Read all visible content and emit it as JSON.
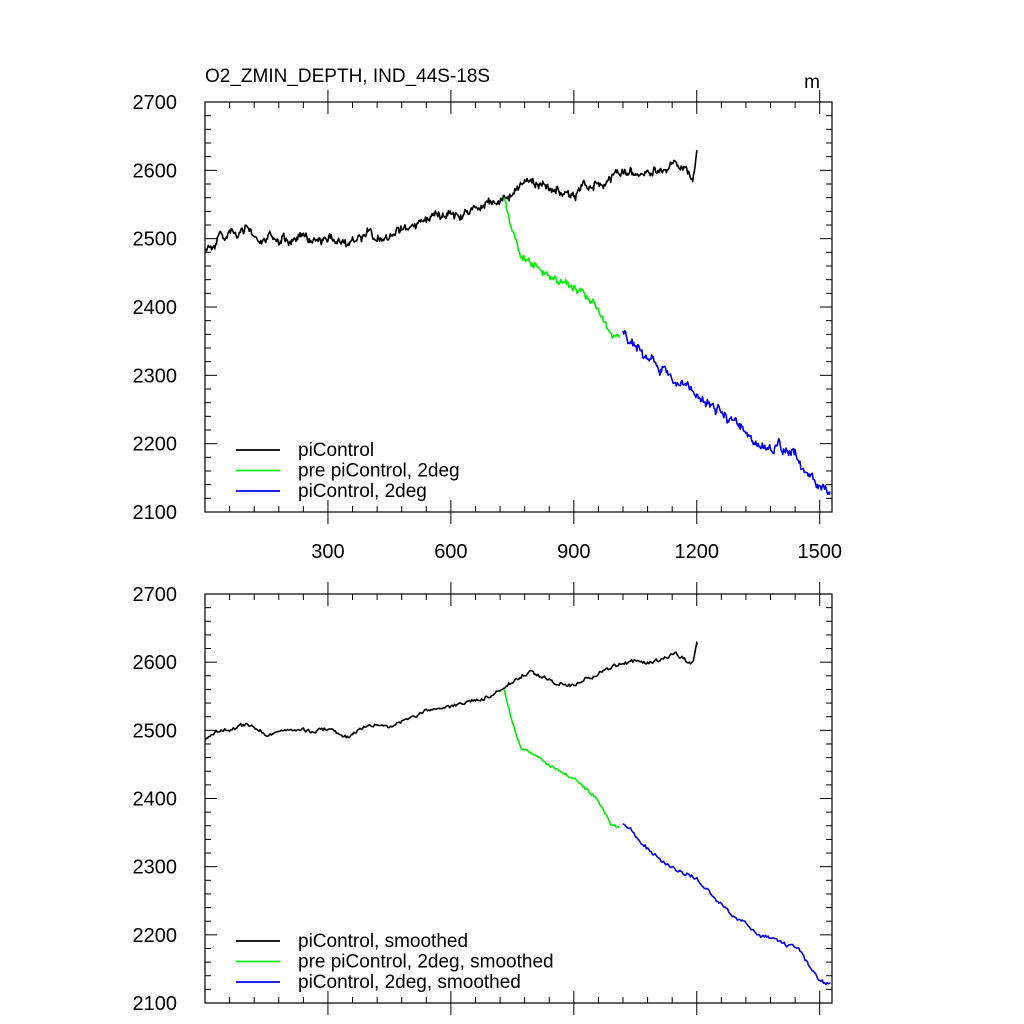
{
  "chart_data": [
    {
      "type": "line",
      "title": "O2_ZMIN_DEPTH, IND_44S-18S",
      "units": "m",
      "xlim": [
        0,
        1530
      ],
      "ylim": [
        2100,
        2700
      ],
      "xticks": [
        300,
        600,
        900,
        1200,
        1500
      ],
      "xtick_labels": [
        "300",
        "600",
        "900",
        "1200",
        "1500"
      ],
      "yticks": [
        2100,
        2200,
        2300,
        2400,
        2500,
        2600,
        2700
      ],
      "ytick_labels": [
        "2100",
        "2200",
        "2300",
        "2400",
        "2500",
        "2600",
        "2700"
      ],
      "legend_position": "bottom-left",
      "series": [
        {
          "name": "piControl",
          "color": "#000000",
          "noise": 9,
          "x": [
            0,
            40,
            100,
            150,
            200,
            300,
            350,
            400,
            450,
            500,
            550,
            600,
            650,
            700,
            730,
            760,
            800,
            850,
            900,
            950,
            1000,
            1050,
            1100,
            1150,
            1190,
            1200
          ],
          "values": [
            2485,
            2500,
            2508,
            2495,
            2498,
            2500,
            2492,
            2510,
            2505,
            2520,
            2530,
            2535,
            2542,
            2552,
            2560,
            2575,
            2585,
            2570,
            2565,
            2580,
            2595,
            2598,
            2600,
            2612,
            2590,
            2628
          ]
        },
        {
          "name": "pre piControl, 2deg",
          "color": "#00ee00",
          "noise": 7,
          "x": [
            730,
            750,
            770,
            800,
            850,
            900,
            950,
            970,
            990,
            1010
          ],
          "values": [
            2560,
            2510,
            2475,
            2465,
            2443,
            2428,
            2405,
            2385,
            2360,
            2355
          ]
        },
        {
          "name": "piControl, 2deg",
          "color": "#0000ee",
          "noise": 10,
          "x": [
            1020,
            1050,
            1100,
            1150,
            1200,
            1250,
            1300,
            1350,
            1400,
            1450,
            1500,
            1525
          ],
          "values": [
            2365,
            2345,
            2320,
            2295,
            2280,
            2250,
            2225,
            2200,
            2195,
            2175,
            2135,
            2130
          ]
        }
      ]
    },
    {
      "type": "line",
      "xlim": [
        0,
        1530
      ],
      "ylim": [
        2100,
        2700
      ],
      "xticks": [
        300,
        600,
        900,
        1200,
        1500
      ],
      "yticks": [
        2100,
        2200,
        2300,
        2400,
        2500,
        2600,
        2700
      ],
      "ytick_labels": [
        "2100",
        "2200",
        "2300",
        "2400",
        "2500",
        "2600",
        "2700"
      ],
      "legend_position": "bottom-left",
      "series": [
        {
          "name": "piControl, smoothed",
          "color": "#000000",
          "noise": 4,
          "x": [
            0,
            40,
            100,
            150,
            200,
            300,
            350,
            400,
            450,
            500,
            550,
            600,
            650,
            700,
            730,
            760,
            800,
            850,
            900,
            950,
            1000,
            1050,
            1100,
            1150,
            1190,
            1200
          ],
          "values": [
            2485,
            2500,
            2508,
            2495,
            2498,
            2500,
            2492,
            2510,
            2505,
            2520,
            2530,
            2535,
            2542,
            2552,
            2560,
            2575,
            2585,
            2570,
            2565,
            2580,
            2595,
            2598,
            2600,
            2612,
            2595,
            2625
          ]
        },
        {
          "name": "pre piControl, 2deg, smoothed",
          "color": "#00ee00",
          "noise": 3,
          "x": [
            730,
            750,
            770,
            800,
            850,
            900,
            950,
            970,
            990,
            1010
          ],
          "values": [
            2560,
            2510,
            2475,
            2465,
            2443,
            2428,
            2405,
            2385,
            2362,
            2357
          ]
        },
        {
          "name": "piControl, 2deg, smoothed",
          "color": "#0000ee",
          "noise": 4,
          "x": [
            1020,
            1050,
            1100,
            1150,
            1200,
            1250,
            1300,
            1350,
            1400,
            1450,
            1500,
            1525
          ],
          "values": [
            2363,
            2345,
            2320,
            2295,
            2280,
            2250,
            2225,
            2200,
            2195,
            2175,
            2133,
            2130
          ]
        }
      ]
    }
  ]
}
